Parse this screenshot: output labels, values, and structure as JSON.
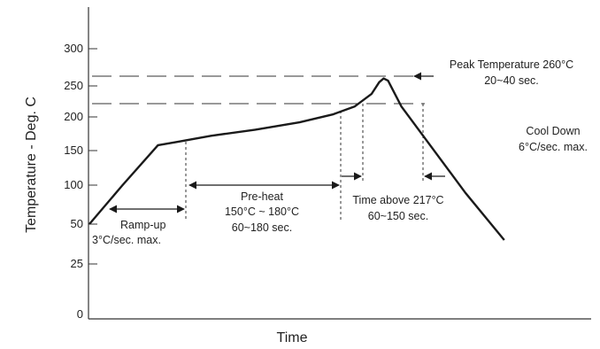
{
  "chart_data": {
    "type": "line",
    "title": "",
    "xlabel": "Time",
    "ylabel": "Temperature - Deg. C",
    "y_ticks": [
      "0",
      "25",
      "50",
      "100",
      "150",
      "200",
      "250",
      "300"
    ],
    "series": [
      {
        "profile": [
          [
            0,
            50
          ],
          [
            30,
            100
          ],
          [
            62,
            158
          ],
          [
            80,
            163
          ],
          [
            110,
            172
          ],
          [
            150,
            181
          ],
          [
            190,
            192
          ],
          [
            220,
            204
          ],
          [
            240,
            217
          ],
          [
            255,
            237
          ],
          [
            262,
            255
          ],
          [
            266,
            260
          ],
          [
            270,
            257
          ],
          [
            282,
            217
          ],
          [
            340,
            90
          ],
          [
            375,
            40
          ]
        ]
      }
    ],
    "reference_lines": [
      {
        "y": 260
      },
      {
        "y": 217
      }
    ],
    "annotations": {
      "ramp_up": [
        "Ramp-up",
        "3°C/sec. max."
      ],
      "preheat": [
        "Pre-heat",
        "150°C ~ 180°C",
        "60~180 sec."
      ],
      "time_above": [
        "Time above 217°C",
        "60~150 sec."
      ],
      "peak": [
        "Peak Temperature 260°C",
        "20~40 sec."
      ],
      "cool_down": [
        "Cool Down",
        "6°C/sec. max."
      ]
    },
    "grid": false,
    "legend": "none",
    "line_color": "#1a1a1a"
  }
}
